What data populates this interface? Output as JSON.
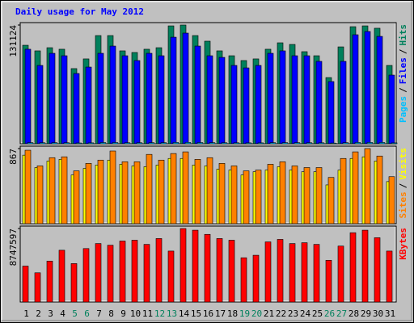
{
  "title": "Daily usage for May 2012",
  "chart_data": [
    {
      "type": "bar",
      "ylim": [
        0,
        131124
      ],
      "yticks": [
        131124
      ],
      "legend_separator": "/",
      "series": [
        {
          "name": "Pages",
          "color": "#00c0ff",
          "values": [
            1200,
            1100,
            1150,
            1100,
            900,
            1000,
            1300,
            1300,
            1100,
            1100,
            1150,
            1150,
            1400,
            1450,
            1300,
            1200,
            1100,
            1050,
            1000,
            1000,
            1150,
            1200,
            1200,
            1100,
            1050,
            800,
            1150,
            1400,
            1400,
            1400,
            950
          ]
        },
        {
          "name": "Files",
          "color": "#0000ff",
          "values": [
            104400,
            86500,
            99900,
            97200,
            77600,
            84700,
            99900,
            107900,
            97200,
            91900,
            99900,
            97200,
            117700,
            122200,
            107900,
            97200,
            95400,
            86500,
            83800,
            86500,
            99900,
            102600,
            97200,
            97200,
            91000,
            68700,
            91000,
            120400,
            124000,
            118600,
            75800
          ]
        },
        {
          "name": "Hits",
          "color": "#00805c",
          "values": [
            108800,
            102600,
            106100,
            104400,
            83000,
            93700,
            119500,
            119500,
            102600,
            100800,
            104400,
            106100,
            130200,
            131124,
            119500,
            113300,
            102600,
            97200,
            91900,
            93700,
            104400,
            111500,
            109700,
            101700,
            97200,
            73100,
            107000,
            129300,
            130200,
            127600,
            86500
          ]
        }
      ]
    },
    {
      "type": "bar",
      "ylim": [
        0,
        867
      ],
      "yticks": [
        867
      ],
      "legend_separator": "/",
      "series": [
        {
          "name": "Sites",
          "color": "#ff8000",
          "values": [
            848,
            667,
            762,
            772,
            610,
            696,
            734,
            839,
            715,
            715,
            800,
            734,
            810,
            829,
            743,
            762,
            696,
            667,
            610,
            619,
            686,
            715,
            667,
            648,
            648,
            534,
            753,
            829,
            867,
            781,
            543
          ]
        },
        {
          "name": "Visits",
          "color": "#ffff00",
          "values": [
            791,
            648,
            724,
            743,
            562,
            638,
            677,
            734,
            686,
            667,
            658,
            677,
            753,
            753,
            677,
            667,
            629,
            619,
            562,
            600,
            619,
            658,
            619,
            600,
            600,
            448,
            619,
            753,
            772,
            724,
            486
          ]
        }
      ]
    },
    {
      "type": "bar",
      "ylim": [
        0,
        8747597
      ],
      "yticks": [
        8747597
      ],
      "categories": [
        "1",
        "2",
        "3",
        "4",
        "5",
        "6",
        "7",
        "8",
        "9",
        "10",
        "11",
        "12",
        "13",
        "14",
        "15",
        "16",
        "17",
        "18",
        "19",
        "20",
        "21",
        "22",
        "23",
        "24",
        "25",
        "26",
        "27",
        "28",
        "29",
        "30",
        "31"
      ],
      "category_colors": [
        "#000000",
        "#000000",
        "#000000",
        "#000000",
        "#00805c",
        "#00805c",
        "#000000",
        "#000000",
        "#000000",
        "#000000",
        "#000000",
        "#00805c",
        "#00805c",
        "#000000",
        "#000000",
        "#000000",
        "#000000",
        "#000000",
        "#00805c",
        "#00805c",
        "#000000",
        "#000000",
        "#000000",
        "#000000",
        "#000000",
        "#00805c",
        "#00805c",
        "#000000",
        "#000000",
        "#000000",
        "#000000"
      ],
      "series": [
        {
          "name": "KBytes",
          "color": "#ff0000",
          "values": [
            4274000,
            3479000,
            4871000,
            6163000,
            4573000,
            6362000,
            6958000,
            6760000,
            7257000,
            7356000,
            6859000,
            7555000,
            6064000,
            8747597,
            8549000,
            8052000,
            7555000,
            7356000,
            5268000,
            5567000,
            7157000,
            7455000,
            6958000,
            7058000,
            6859000,
            4970000,
            6660000,
            8251000,
            8549000,
            7654000,
            6064000
          ]
        }
      ]
    }
  ]
}
